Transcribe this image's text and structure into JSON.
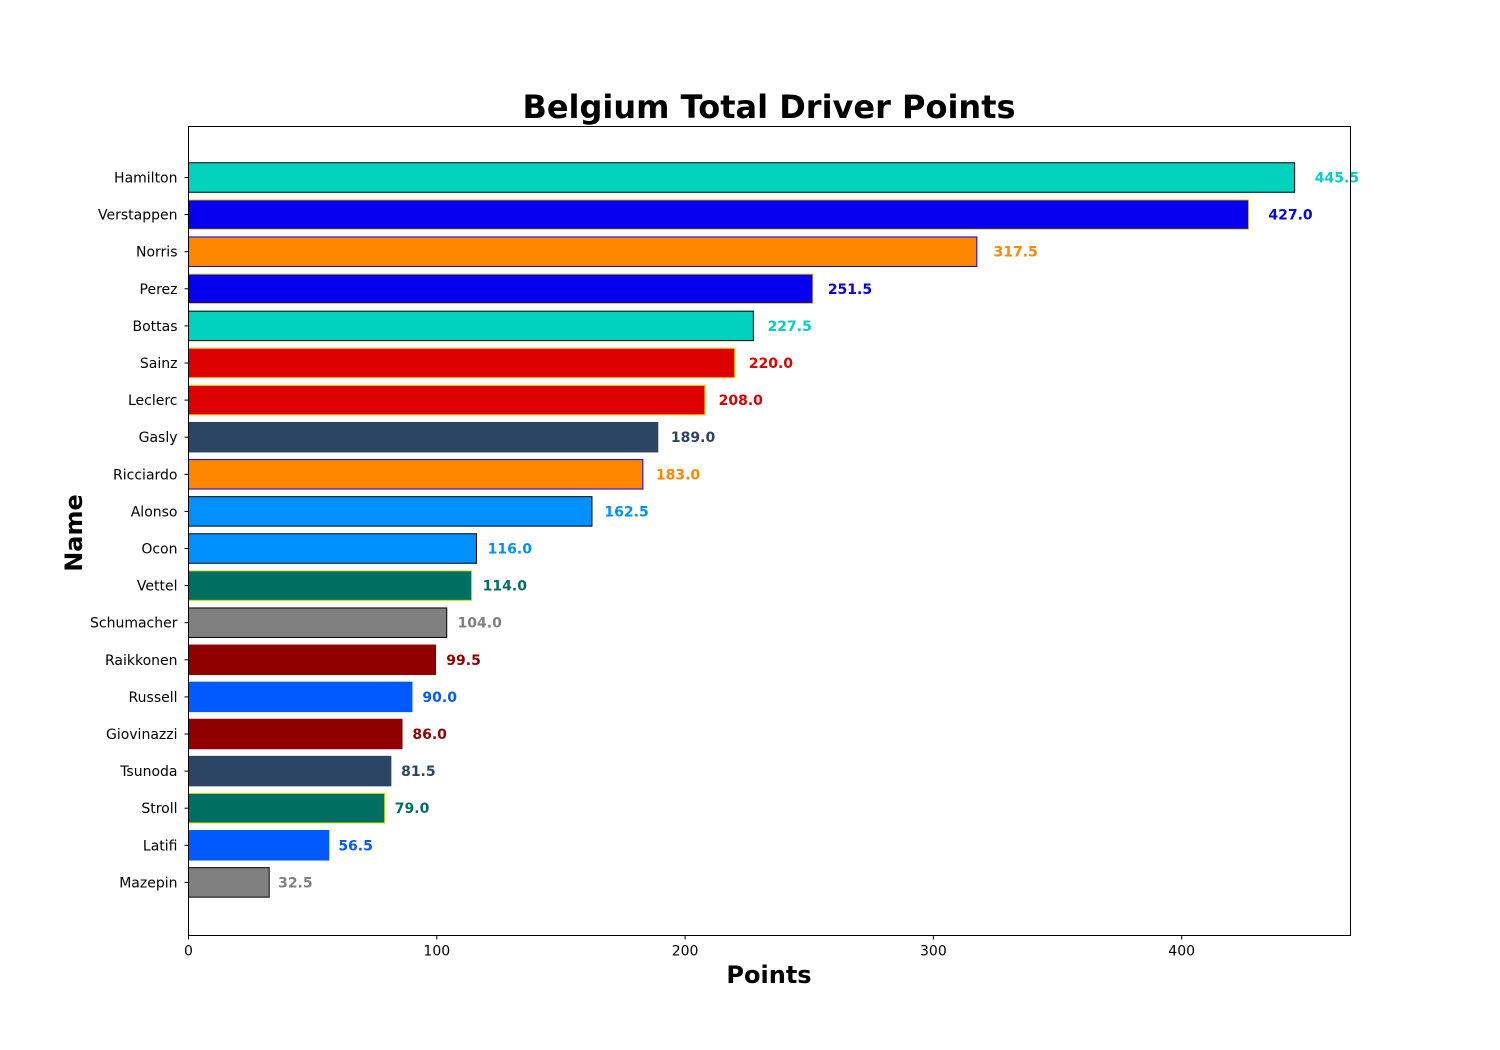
{
  "chart_data": {
    "type": "bar",
    "orientation": "horizontal",
    "title": "Belgium Total Driver Points",
    "xlabel": "Points",
    "ylabel": "Name",
    "xlim": [
      0,
      468
    ],
    "xticks": [
      0,
      100,
      200,
      300,
      400
    ],
    "grid": false,
    "categories": [
      "Hamilton",
      "Verstappen",
      "Norris",
      "Perez",
      "Bottas",
      "Sainz",
      "Leclerc",
      "Gasly",
      "Ricciardo",
      "Alonso",
      "Ocon",
      "Vettel",
      "Schumacher",
      "Raikkonen",
      "Russell",
      "Giovinazzi",
      "Tsunoda",
      "Stroll",
      "Latifi",
      "Mazepin"
    ],
    "values": [
      445.5,
      427.0,
      317.5,
      251.5,
      227.5,
      220.0,
      208.0,
      189.0,
      183.0,
      162.5,
      116.0,
      114.0,
      104.0,
      99.5,
      90.0,
      86.0,
      81.5,
      79.0,
      56.5,
      32.5
    ],
    "value_labels": [
      "445.5",
      "427.0",
      "317.5",
      "251.5",
      "227.5",
      "220.0",
      "208.0",
      "189.0",
      "183.0",
      "162.5",
      "116.0",
      "114.0",
      "104.0",
      "99.5",
      "90.0",
      "86.0",
      "81.5",
      "79.0",
      "56.5",
      "32.5"
    ],
    "colors": [
      "#00D2BE",
      "#0600EF",
      "#FF8700",
      "#0600EF",
      "#00D2BE",
      "#DC0000",
      "#DC0000",
      "#2B4562",
      "#FF8700",
      "#0090FF",
      "#0090FF",
      "#006F62",
      "#808080",
      "#900000",
      "#005AFF",
      "#900000",
      "#2B4562",
      "#006F62",
      "#005AFF",
      "#808080"
    ],
    "edge_colors": [
      "#000000",
      "#FFD700",
      "#0600EF",
      "#FFD700",
      "#000000",
      "#FFD700",
      "#FFD700",
      "#2B4562",
      "#0600EF",
      "#000000",
      "#000000",
      "#CEDC00",
      "#000000",
      "#900000",
      "#005AFF",
      "#900000",
      "#2B4562",
      "#CEDC00",
      "#005AFF",
      "#000000"
    ]
  }
}
